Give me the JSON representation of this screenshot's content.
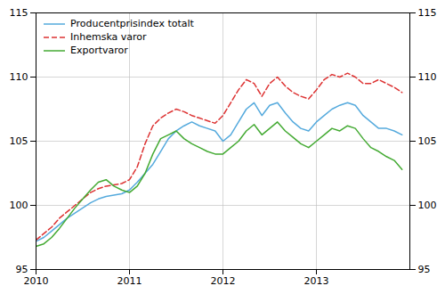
{
  "chart_data": {
    "type": "line",
    "x": [
      2010,
      2010.0833333333333,
      2010.1666666666667,
      2010.25,
      2010.3333333333333,
      2010.4166666666667,
      2010.5,
      2010.5833333333333,
      2010.6666666666667,
      2010.75,
      2010.8333333333333,
      2010.9166666666667,
      2011,
      2011.0833333333333,
      2011.1666666666667,
      2011.25,
      2011.3333333333333,
      2011.4166666666667,
      2011.5,
      2011.5833333333333,
      2011.6666666666667,
      2011.75,
      2011.8333333333333,
      2011.9166666666667,
      2012,
      2012.0833333333333,
      2012.1666666666667,
      2012.25,
      2012.3333333333333,
      2012.4166666666667,
      2012.5,
      2012.5833333333333,
      2012.6666666666667,
      2012.75,
      2012.8333333333333,
      2012.9166666666667,
      2013,
      2013.0833333333333,
      2013.1666666666667,
      2013.25,
      2013.3333333333333,
      2013.4166666666667,
      2013.5,
      2013.5833333333333,
      2013.6666666666667,
      2013.75,
      2013.8333333333333,
      2013.9166666666667
    ],
    "series": [
      {
        "name": "Producentprisindex totalt",
        "color": "#55aadd",
        "line_style": "solid",
        "values": [
          97.2,
          97.5,
          98.0,
          98.5,
          99.0,
          99.4,
          99.8,
          100.2,
          100.5,
          100.7,
          100.8,
          100.9,
          101.2,
          101.8,
          102.5,
          103.2,
          104.2,
          105.2,
          105.8,
          106.2,
          106.5,
          106.2,
          106.0,
          105.8,
          105.0,
          105.5,
          106.5,
          107.5,
          108.0,
          107.0,
          107.8,
          108.0,
          107.2,
          106.5,
          106.0,
          105.8,
          106.5,
          107.0,
          107.5,
          107.8,
          108.0,
          107.8,
          107.0,
          106.5,
          106.0,
          106.0,
          105.8,
          105.5
        ]
      },
      {
        "name": "Inhemska varor",
        "color": "#dd3333",
        "line_style": "dashed",
        "values": [
          97.3,
          97.8,
          98.3,
          99.0,
          99.5,
          100.0,
          100.5,
          101.0,
          101.3,
          101.5,
          101.6,
          101.7,
          102.0,
          103.0,
          104.8,
          106.2,
          106.8,
          107.2,
          107.5,
          107.3,
          107.0,
          106.8,
          106.6,
          106.4,
          107.0,
          108.0,
          109.0,
          109.8,
          109.5,
          108.5,
          109.5,
          110.0,
          109.3,
          108.8,
          108.5,
          108.3,
          109.0,
          109.8,
          110.2,
          110.0,
          110.3,
          110.0,
          109.5,
          109.5,
          109.8,
          109.5,
          109.2,
          108.8
        ]
      },
      {
        "name": "Exportvaror",
        "color": "#44aa33",
        "line_style": "solid",
        "values": [
          96.8,
          97.0,
          97.5,
          98.2,
          99.0,
          99.8,
          100.5,
          101.2,
          101.8,
          102.0,
          101.5,
          101.2,
          101.0,
          101.5,
          102.5,
          104.0,
          105.2,
          105.5,
          105.8,
          105.2,
          104.8,
          104.5,
          104.2,
          104.0,
          104.0,
          104.5,
          105.0,
          105.8,
          106.3,
          105.5,
          106.0,
          106.5,
          105.8,
          105.3,
          104.8,
          104.5,
          105.0,
          105.5,
          106.0,
          105.8,
          106.2,
          106.0,
          105.2,
          104.5,
          104.2,
          103.8,
          103.5,
          102.8
        ]
      }
    ],
    "xlim": [
      2010.0,
      2014.0
    ],
    "xticks": [
      2010,
      2011,
      2012,
      2013
    ],
    "ylim": [
      95,
      115
    ],
    "yticks": [
      95,
      100,
      105,
      110,
      115
    ],
    "grid": true,
    "legend": "upper left"
  }
}
